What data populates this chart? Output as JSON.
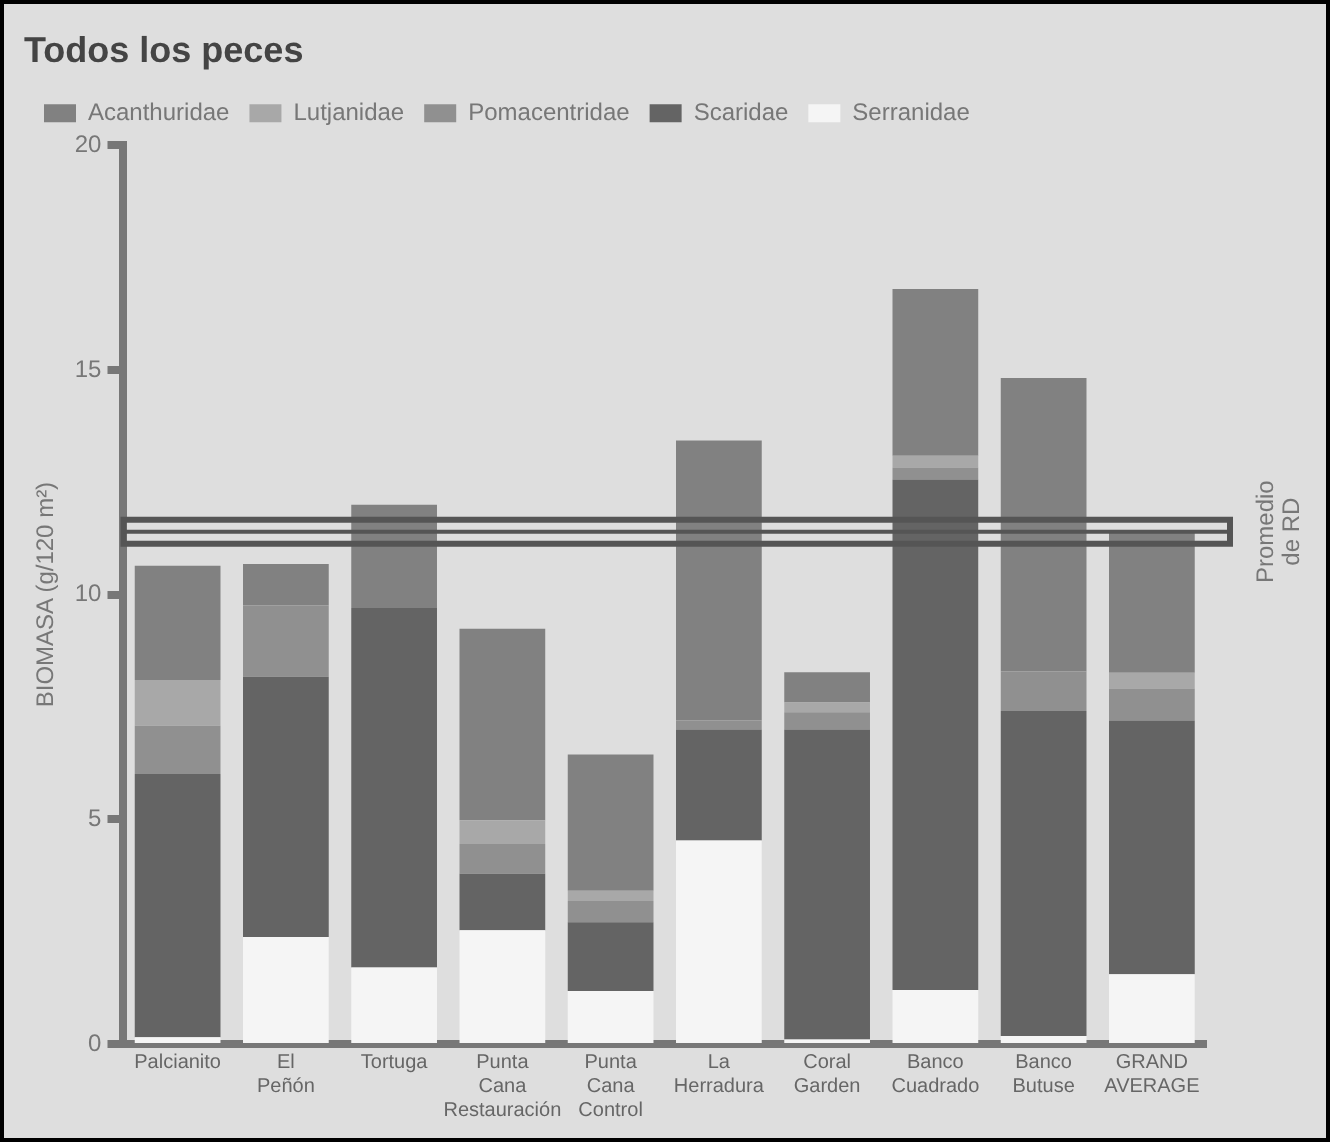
{
  "chart_data": {
    "type": "bar",
    "title": "Todos los peces",
    "ylabel": "BIOMASA (g/120 m²)",
    "categories": [
      "Palcianito",
      "El Peñón",
      "Tortuga",
      "Punta Cana Restauración",
      "Punta Cana Control",
      "La Herradura",
      "Coral Garden",
      "Banco Cuadrado",
      "Banco Butuse",
      "GRAND AVERAGE"
    ],
    "stacked": true,
    "series": [
      {
        "name": "Serranidae",
        "color": "#f5f5f5",
        "values": [
          0.15,
          2.38,
          1.7,
          2.53,
          1.18,
          4.53,
          0.1,
          1.2,
          0.18,
          1.55
        ]
      },
      {
        "name": "Scaridae",
        "color": "#646464",
        "values": [
          5.86,
          5.79,
          8.0,
          1.26,
          1.53,
          2.47,
          6.9,
          11.36,
          7.23,
          5.65
        ]
      },
      {
        "name": "Pomacentridae",
        "color": "#909090",
        "values": [
          1.07,
          1.59,
          0,
          0.66,
          0.47,
          0.2,
          0.38,
          0.27,
          0.88,
          0.71
        ]
      },
      {
        "name": "Lutjanidae",
        "color": "#a8a8a8",
        "values": [
          1.02,
          0,
          0,
          0.53,
          0.23,
          0,
          0.22,
          0.26,
          0,
          0.35
        ]
      },
      {
        "name": "Acanthuridae",
        "color": "#818181",
        "values": [
          2.54,
          0.92,
          2.3,
          4.26,
          3.03,
          6.23,
          0.67,
          3.71,
          6.53,
          3.16
        ]
      }
    ],
    "ylim": [
      0,
      20
    ],
    "yticks": [
      0,
      5,
      10,
      15,
      20
    ],
    "grid": false,
    "legend": "top left",
    "ref_lines": [
      {
        "axis": "y",
        "value": 11.4,
        "label": "Promedio de RD",
        "color": "#555555"
      }
    ]
  }
}
